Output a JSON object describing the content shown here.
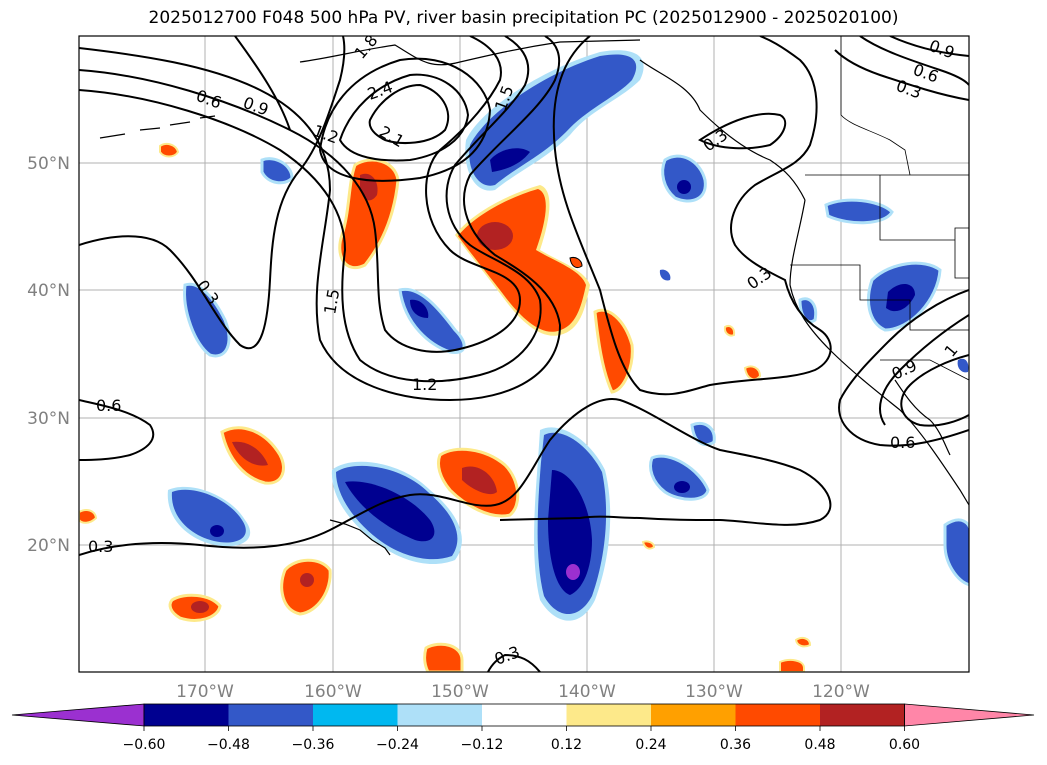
{
  "title": "2025012700 F048 500 hPa PV, river basin precipitation PC (2025012900 - 2025020100)",
  "map": {
    "lat_labels": [
      "50°N",
      "40°N",
      "30°N",
      "20°N"
    ],
    "lon_labels": [
      "170°W",
      "160°W",
      "150°W",
      "140°W",
      "130°W",
      "120°W"
    ],
    "contour_labels": [
      "1.8",
      "2.4",
      "2.1",
      "1.5",
      "1.2",
      "0.6",
      "0.9",
      "0.3",
      "1.5",
      "1.2",
      "0.3",
      "0.6",
      "0.3",
      "0.3",
      "0.3",
      "0.9",
      "0.6",
      "0.3",
      "0.9",
      "0.6",
      "1"
    ]
  },
  "colorbar": {
    "colors": [
      "#9b30d0",
      "#000090",
      "#3358c8",
      "#00b8f0",
      "#aee0f8",
      "#ffffff",
      "#fde98a",
      "#ffa000",
      "#ff4a00",
      "#b22222",
      "#ff86a8"
    ],
    "ticks": [
      "−0.60",
      "−0.48",
      "−0.36",
      "−0.24",
      "−0.12",
      "0.12",
      "0.24",
      "0.36",
      "0.48",
      "0.60"
    ]
  }
}
